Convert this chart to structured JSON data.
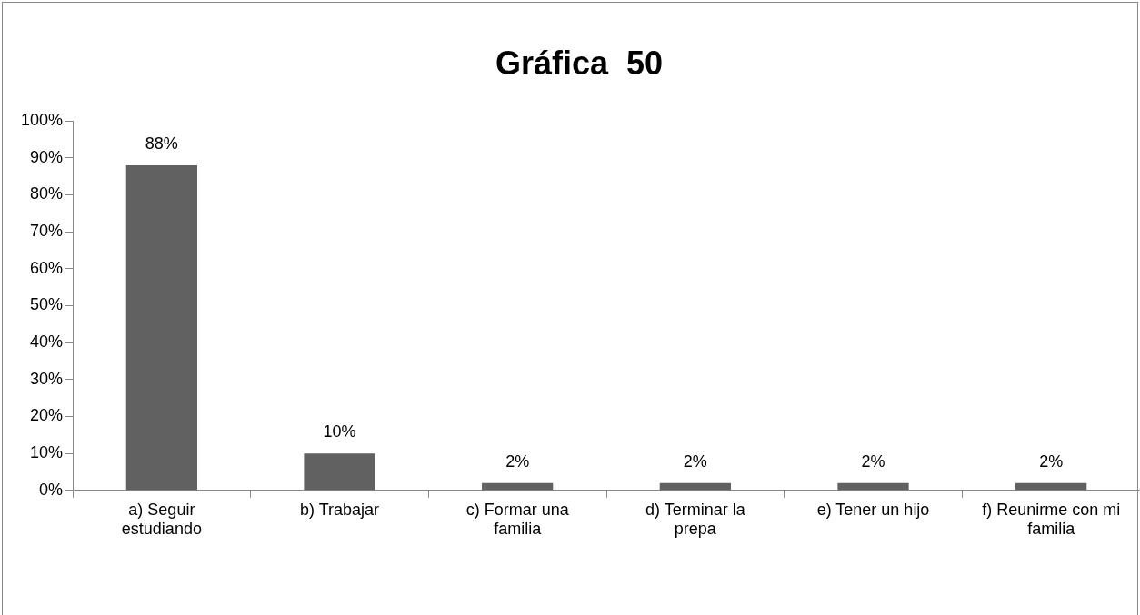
{
  "chart_data": {
    "type": "bar",
    "title": "Gráfica  50",
    "categories": [
      "a) Seguir estudiando",
      "b) Trabajar",
      "c) Formar una familia",
      "d) Terminar la prepa",
      "e) Tener un hijo",
      "f) Reunirme con mi familia"
    ],
    "values": [
      88,
      10,
      2,
      2,
      2,
      2
    ],
    "value_labels": [
      "88%",
      "10%",
      "2%",
      "2%",
      "2%",
      "2%"
    ],
    "color": "#616161",
    "ylim": [
      0,
      100
    ],
    "yticks": [
      {
        "value": 0,
        "label": "0%"
      },
      {
        "value": 10,
        "label": "10%"
      },
      {
        "value": 20,
        "label": "20%"
      },
      {
        "value": 30,
        "label": "30%"
      },
      {
        "value": 40,
        "label": "40%"
      },
      {
        "value": 50,
        "label": "50%"
      },
      {
        "value": 60,
        "label": "60%"
      },
      {
        "value": 70,
        "label": "70%"
      },
      {
        "value": 80,
        "label": "80%"
      },
      {
        "value": 90,
        "label": "90%"
      },
      {
        "value": 100,
        "label": "100%"
      }
    ],
    "grid": false,
    "legend": false
  }
}
